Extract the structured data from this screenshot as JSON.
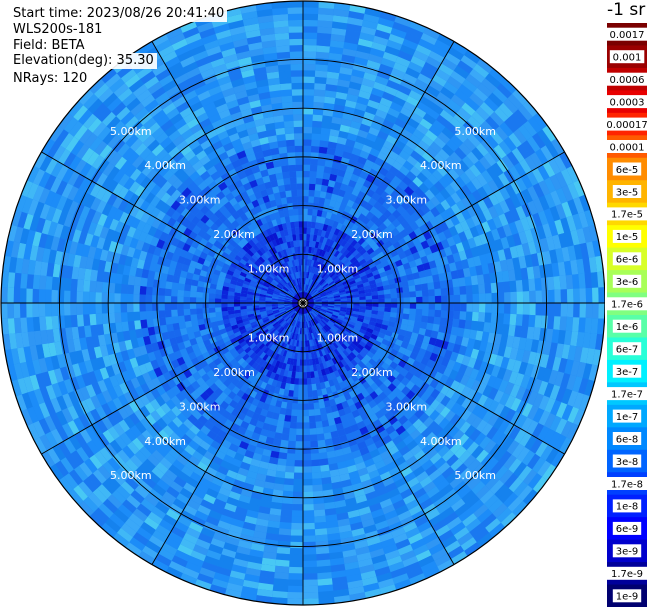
{
  "header": {
    "start_time": "Start time: 2023/08/26 20:41:40",
    "instrument": "WLS200s-181",
    "field": "Field: BETA",
    "elevation": "Elevation(deg): 35.30",
    "nrays": "NRays: 120"
  },
  "chart_data": {
    "type": "heatmap",
    "projection": "polar-ppi",
    "nrays": 120,
    "ring_labels": [
      "1.00km",
      "2.00km",
      "3.00km",
      "4.00km",
      "5.00km"
    ],
    "ring_values_km": [
      1,
      2,
      3,
      4,
      5
    ],
    "max_range_km": 6.2,
    "colorbar": {
      "unit_label": "-1 sr",
      "labels": [
        "0.0017",
        "0.001",
        "0.0006",
        "0.0003",
        "0.00017",
        "0.0001",
        "6e-5",
        "3e-5",
        "1.7e-5",
        "1e-5",
        "6e-6",
        "3e-6",
        "1.7e-6",
        "1e-6",
        "6e-7",
        "3e-7",
        "1.7e-7",
        "1e-7",
        "6e-8",
        "3e-8",
        "1.7e-8",
        "1e-8",
        "6e-9",
        "3e-9",
        "1.7e-9",
        "1e-9"
      ],
      "colors": [
        "#7a0000",
        "#9a0000",
        "#c00000",
        "#e80000",
        "#ff2400",
        "#ff5a00",
        "#ff8c00",
        "#ffb400",
        "#ffd800",
        "#ffff00",
        "#d8ff28",
        "#a8ff58",
        "#80ff80",
        "#58ffa8",
        "#28ffd8",
        "#00f0ff",
        "#00c8ff",
        "#00a8ff",
        "#0088ff",
        "#0064ff",
        "#0040ff",
        "#0020ff",
        "#0000ff",
        "#0000cc",
        "#00009a",
        "#000070"
      ]
    }
  }
}
